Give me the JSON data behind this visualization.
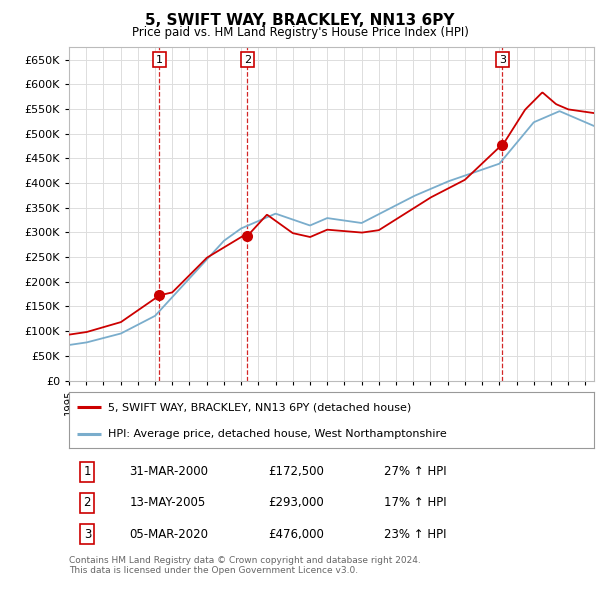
{
  "title": "5, SWIFT WAY, BRACKLEY, NN13 6PY",
  "subtitle": "Price paid vs. HM Land Registry's House Price Index (HPI)",
  "ylim": [
    0,
    675000
  ],
  "yticks": [
    0,
    50000,
    100000,
    150000,
    200000,
    250000,
    300000,
    350000,
    400000,
    450000,
    500000,
    550000,
    600000,
    650000
  ],
  "xlim_start": 1995.0,
  "xlim_end": 2025.5,
  "sale_color": "#cc0000",
  "hpi_color": "#7aadcc",
  "marker_color": "#cc0000",
  "sale_dates": [
    2000.247,
    2005.367,
    2020.176
  ],
  "sale_prices": [
    172500,
    293000,
    476000
  ],
  "sale_labels": [
    "1",
    "2",
    "3"
  ],
  "legend_sale": "5, SWIFT WAY, BRACKLEY, NN13 6PY (detached house)",
  "legend_hpi": "HPI: Average price, detached house, West Northamptonshire",
  "table_rows": [
    [
      "1",
      "31-MAR-2000",
      "£172,500",
      "27% ↑ HPI"
    ],
    [
      "2",
      "13-MAY-2005",
      "£293,000",
      "17% ↑ HPI"
    ],
    [
      "3",
      "05-MAR-2020",
      "£476,000",
      "23% ↑ HPI"
    ]
  ],
  "footnote": "Contains HM Land Registry data © Crown copyright and database right 2024.\nThis data is licensed under the Open Government Licence v3.0.",
  "background_color": "#ffffff",
  "grid_color": "#dddddd",
  "border_color": "#aaaaaa"
}
